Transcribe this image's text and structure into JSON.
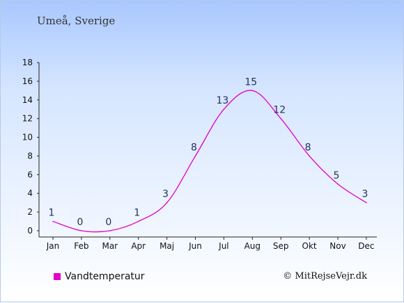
{
  "header": {
    "location": "Umeå, Sverige"
  },
  "legend": {
    "label": "Vandtemperatur"
  },
  "credit": "© MitRejseVejr.dk",
  "colors": {
    "series": "#e000c8",
    "axis": "#222222",
    "label": "#1f2f5a"
  },
  "chart_data": {
    "type": "line",
    "categories": [
      "Jan",
      "Feb",
      "Mar",
      "Apr",
      "Maj",
      "Jun",
      "Jul",
      "Aug",
      "Sep",
      "Okt",
      "Nov",
      "Dec"
    ],
    "values": [
      1,
      0,
      0,
      1,
      3,
      8,
      13,
      15,
      12,
      8,
      5,
      3
    ],
    "data_labels": [
      "1",
      "0",
      "0",
      "1",
      "3",
      "8",
      "13",
      "15",
      "12",
      "8",
      "5",
      "3"
    ],
    "series": [
      {
        "name": "Vandtemperatur",
        "values": [
          1,
          0,
          0,
          1,
          3,
          8,
          13,
          15,
          12,
          8,
          5,
          3
        ]
      }
    ],
    "ylim": [
      0,
      18
    ],
    "yticks": [
      "0",
      "2",
      "4",
      "6",
      "8",
      "10",
      "12",
      "14",
      "16",
      "18"
    ],
    "grid": false,
    "legend_position": "bottom-left"
  }
}
